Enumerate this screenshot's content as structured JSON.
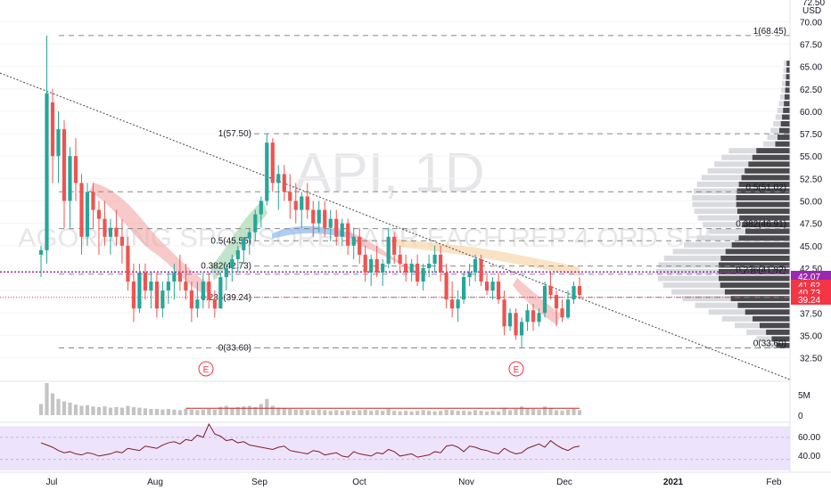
{
  "symbol_watermark": "API, 1D",
  "name_watermark": "AGORA ING SPONSORED ADR EACH REP 4 ORD SHS",
  "currency": "USD",
  "colors": {
    "up": "#26a69a",
    "down": "#ef5350",
    "rsi_line": "#7e1d2b",
    "rsi_band": "#ede4fb",
    "volume": "#c4c4c4",
    "vol_ma": "#c62828",
    "trendline": "#444444",
    "badge_current": "#f23645",
    "badge_purple": "#9c27b0",
    "fib_line": "#888888"
  },
  "main_axis": {
    "ticks": [
      "32.50",
      "35.00",
      "37.50",
      "40.00",
      "42.50",
      "45.00",
      "47.50",
      "50.00",
      "52.50",
      "55.00",
      "57.50",
      "60.00",
      "62.50",
      "65.00",
      "67.50",
      "70.00"
    ],
    "top_partial": "72.50"
  },
  "price_badges": [
    {
      "label": "42.07",
      "value": 42.07,
      "color": "#9c27b0"
    },
    {
      "label": "41.62",
      "value": 41.62,
      "color": "#f23645"
    },
    {
      "label": "40.73",
      "value": 40.73,
      "color": "#f23645"
    },
    {
      "label": "39.24",
      "value": 39.24,
      "color": "#f23645"
    }
  ],
  "fib_left": [
    {
      "label": "1(57.50)",
      "value": 57.5
    },
    {
      "label": "0.5(45.55)",
      "value": 45.55
    },
    {
      "label": "0.382(42.73)",
      "value": 42.73
    },
    {
      "label": "0.236(39.24)",
      "value": 39.24
    },
    {
      "label": "0(33.60)",
      "value": 33.6
    }
  ],
  "fib_right": [
    {
      "label": "1(68.45)",
      "value": 68.45
    },
    {
      "label": "0.5(51.02)",
      "value": 51.02
    },
    {
      "label": "0.382(46.91)",
      "value": 46.91
    },
    {
      "label": "0.236(41.82)",
      "value": 41.82
    },
    {
      "label": "0(33.60)",
      "value": 33.6
    }
  ],
  "earnings_markers": [
    "E",
    "E"
  ],
  "volume_axis": [
    "5M",
    "0"
  ],
  "rsi_axis": [
    "60.00",
    "40.00"
  ],
  "x_axis": [
    "Jul",
    "Aug",
    "Sep",
    "Oct",
    "Nov",
    "Dec",
    "2021",
    "Feb"
  ],
  "chart_data": {
    "type": "candlestick",
    "interval": "1D",
    "y_range": [
      31,
      72.5
    ],
    "ohlc": [
      [
        44,
        45,
        41.5,
        44.5
      ],
      [
        44.5,
        68.45,
        43,
        62
      ],
      [
        61,
        62.5,
        52,
        55
      ],
      [
        55,
        60,
        52,
        58
      ],
      [
        58,
        59,
        47,
        50
      ],
      [
        50,
        56,
        47,
        55
      ],
      [
        55,
        57,
        50,
        52
      ],
      [
        52,
        53,
        44,
        46
      ],
      [
        46,
        52,
        45,
        51
      ],
      [
        51,
        52,
        47,
        49
      ],
      [
        49,
        50,
        44,
        48
      ],
      [
        48,
        50,
        45,
        46
      ],
      [
        46,
        48,
        44,
        47
      ],
      [
        47,
        49,
        45,
        46
      ],
      [
        46,
        48,
        43,
        45
      ],
      [
        45,
        46,
        40,
        41
      ],
      [
        41,
        43,
        36.5,
        38
      ],
      [
        38,
        43,
        37.5,
        42
      ],
      [
        42,
        43,
        39,
        40
      ],
      [
        40,
        42,
        38,
        41
      ],
      [
        41,
        42,
        37,
        38
      ],
      [
        38,
        41,
        37,
        40
      ],
      [
        40,
        42,
        38.5,
        41
      ],
      [
        41,
        43,
        39,
        42
      ],
      [
        42,
        44,
        40,
        41
      ],
      [
        41,
        43,
        39,
        40
      ],
      [
        40,
        41,
        36.5,
        38
      ],
      [
        38,
        41,
        37,
        39
      ],
      [
        39,
        42,
        38,
        41
      ],
      [
        41,
        42,
        38,
        39
      ],
      [
        39,
        40,
        37,
        38
      ],
      [
        38,
        42,
        38,
        41.5
      ],
      [
        41.5,
        43,
        40,
        42.5
      ],
      [
        42.5,
        44,
        41,
        43.5
      ],
      [
        43.5,
        45,
        42,
        44.5
      ],
      [
        44.5,
        46,
        43,
        45.8
      ],
      [
        45.8,
        47,
        44,
        46.5
      ],
      [
        46.5,
        49,
        45.5,
        48.5
      ],
      [
        48.5,
        50.5,
        47,
        50
      ],
      [
        50,
        57.5,
        49.5,
        56.5
      ],
      [
        56.5,
        57,
        51,
        52
      ],
      [
        52,
        54,
        49,
        53
      ],
      [
        53,
        54,
        50,
        51
      ],
      [
        51,
        53,
        48,
        50
      ],
      [
        50,
        52,
        47.5,
        49
      ],
      [
        49,
        51,
        47,
        50.5
      ],
      [
        50.5,
        52,
        48,
        49
      ],
      [
        49,
        50,
        46,
        47.5
      ],
      [
        47.5,
        50,
        46.5,
        49
      ],
      [
        49,
        50,
        46,
        47
      ],
      [
        47,
        49,
        45.5,
        48
      ],
      [
        48,
        49,
        45,
        46
      ],
      [
        46,
        48,
        45,
        47.5
      ],
      [
        47.5,
        48,
        44,
        45
      ],
      [
        45,
        47,
        43.5,
        46
      ],
      [
        46,
        47,
        43,
        44
      ],
      [
        44,
        45,
        41,
        42
      ],
      [
        42,
        44,
        40.5,
        43.5
      ],
      [
        43.5,
        45,
        41.5,
        42
      ],
      [
        42,
        43.5,
        40.5,
        43
      ],
      [
        43,
        47,
        42.5,
        46
      ],
      [
        46,
        46.5,
        43,
        44
      ],
      [
        44,
        45,
        42,
        43
      ],
      [
        43,
        44,
        41,
        42
      ],
      [
        42,
        43.5,
        41,
        43
      ],
      [
        43,
        44,
        40.5,
        41
      ],
      [
        41,
        43,
        40,
        42.5
      ],
      [
        42.5,
        44,
        41.5,
        43
      ],
      [
        43,
        45,
        42,
        44
      ],
      [
        44,
        45,
        41,
        42
      ],
      [
        42,
        43,
        38,
        39
      ],
      [
        39,
        41,
        37,
        38
      ],
      [
        38,
        40,
        36.5,
        39
      ],
      [
        39,
        42,
        38.5,
        41.5
      ],
      [
        41.5,
        43,
        40.5,
        42
      ],
      [
        42,
        44,
        41,
        43.5
      ],
      [
        43.5,
        44,
        40.5,
        41
      ],
      [
        41,
        42,
        39.5,
        40
      ],
      [
        40,
        41.5,
        39,
        41
      ],
      [
        41,
        42,
        38.5,
        39
      ],
      [
        39,
        40,
        35,
        36
      ],
      [
        36,
        38,
        35.5,
        37.5
      ],
      [
        37.5,
        38,
        34.5,
        35
      ],
      [
        35,
        37,
        33.6,
        36.5
      ],
      [
        36.5,
        38.5,
        35.5,
        37.8
      ],
      [
        37.8,
        38.5,
        35.5,
        36.5
      ],
      [
        36.5,
        38,
        36,
        37.5
      ],
      [
        37.5,
        41,
        37,
        40.5
      ],
      [
        40.5,
        42,
        39,
        39.5
      ],
      [
        39.5,
        40,
        36,
        38
      ],
      [
        38,
        39,
        36.5,
        37
      ],
      [
        37,
        40,
        36.8,
        39
      ],
      [
        39,
        41,
        38.5,
        40.5
      ],
      [
        40.5,
        41.5,
        39,
        39.5
      ]
    ],
    "volume_millions": [
      1.8,
      5.5,
      3.5,
      2.6,
      2.2,
      2.0,
      1.7,
      1.5,
      1.6,
      1.4,
      1.3,
      1.4,
      1.2,
      1.3,
      1.2,
      1.5,
      1.3,
      1.2,
      1.1,
      1.0,
      1.0,
      0.9,
      1.0,
      0.9,
      0.8,
      1.0,
      0.9,
      0.8,
      0.9,
      1.0,
      0.9,
      1.3,
      1.5,
      1.2,
      1.3,
      1.4,
      1.5,
      1.3,
      1.8,
      2.6,
      1.5,
      1.2,
      1.1,
      1.0,
      0.9,
      0.9,
      0.8,
      0.8,
      0.9,
      0.8,
      0.7,
      0.8,
      0.7,
      0.8,
      0.7,
      0.8,
      0.9,
      0.7,
      0.8,
      0.7,
      1.0,
      0.7,
      0.6,
      0.7,
      0.6,
      0.7,
      0.8,
      0.7,
      0.6,
      0.7,
      0.9,
      0.8,
      0.7,
      0.7,
      0.6,
      0.8,
      0.7,
      0.6,
      0.7,
      0.6,
      1.2,
      0.8,
      1.0,
      1.4,
      1.1,
      1.0,
      0.9,
      1.4,
      1.1,
      0.8,
      0.7,
      0.9,
      1.0,
      0.8
    ],
    "rsi": [
      55,
      53,
      51,
      48,
      46,
      47,
      45,
      44,
      46,
      45,
      43,
      44,
      45,
      47,
      46,
      50,
      49,
      48,
      52,
      51,
      50,
      53,
      55,
      56,
      54,
      58,
      57,
      62,
      60,
      72,
      63,
      61,
      57,
      58,
      55,
      56,
      53,
      52,
      51,
      50,
      49,
      51,
      52,
      48,
      47,
      46,
      45,
      48,
      47,
      44,
      45,
      46,
      43,
      42,
      47,
      45,
      44,
      43,
      46,
      45,
      49,
      47,
      43,
      44,
      45,
      42,
      43,
      44,
      47,
      46,
      52,
      53,
      51,
      47,
      52,
      51,
      49,
      48,
      46,
      45,
      50,
      47,
      45,
      46,
      50,
      52,
      54,
      51,
      57,
      53,
      50,
      48,
      51,
      52
    ],
    "rsi_ylim": [
      30,
      72
    ]
  }
}
